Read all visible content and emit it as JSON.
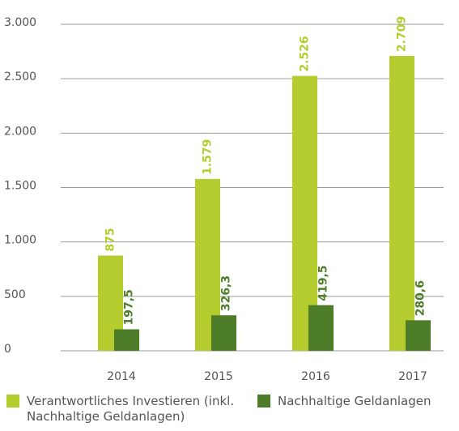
{
  "chart_data": {
    "type": "bar",
    "categories": [
      "2014",
      "2015",
      "2016",
      "2017"
    ],
    "series": [
      {
        "name": "Verantwortliches Investieren (inkl. Nachhaltige Geldanlagen)",
        "color": "#b5cc2e",
        "values": [
          875,
          1579,
          2526,
          2709
        ],
        "value_labels": [
          "875",
          "1.579",
          "2.526",
          "2.709"
        ]
      },
      {
        "name": "Nachhaltige Geldanlagen",
        "color": "#4e7d2a",
        "values": [
          197.5,
          326.3,
          419.5,
          280.6
        ],
        "value_labels": [
          "197,5",
          "326,3",
          "419,5",
          "280,6"
        ]
      }
    ],
    "ylim": [
      0,
      3000
    ],
    "yticks": [
      0,
      {
        "value": 500,
        "label": "500"
      },
      {
        "value": 1000,
        "label": "1.000"
      },
      {
        "value": 1500,
        "label": "1.500"
      },
      {
        "value": 2000,
        "label": "2.000"
      },
      {
        "value": 2500,
        "label": "2.500"
      },
      {
        "value": 3000,
        "label": "3.000"
      }
    ],
    "grid": true,
    "legend": "bottom"
  }
}
